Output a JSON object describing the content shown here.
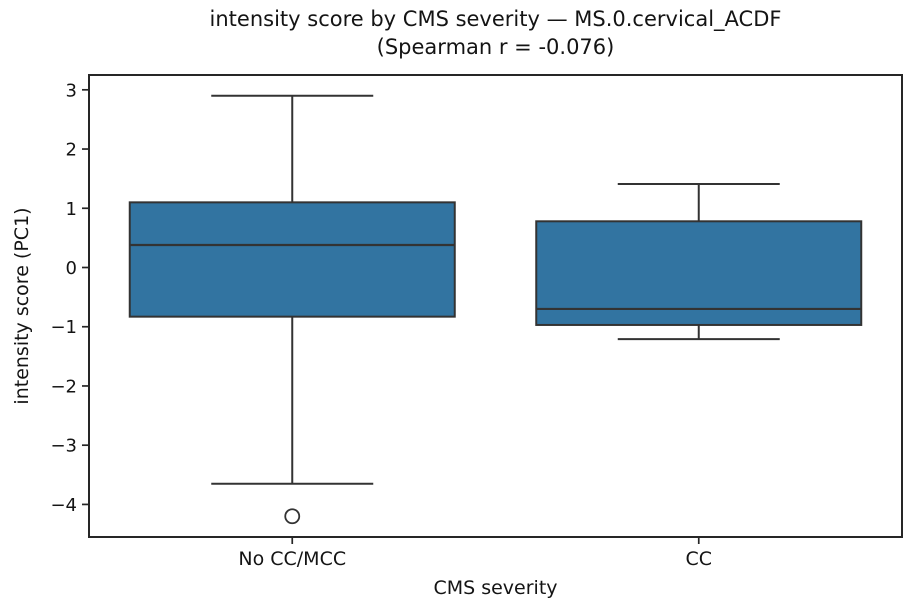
{
  "figure": {
    "background": "#ffffff"
  },
  "chart_data": {
    "type": "box",
    "title": "intensity score by CMS severity — MS.0.cervical_ACDF",
    "subtitle": "(Spearman r = -0.076)",
    "xlabel": "CMS severity",
    "ylabel": "intensity score (PC1)",
    "categories": [
      "No CC/MCC",
      "CC"
    ],
    "series": [
      {
        "category": "No CC/MCC",
        "whisker_low": -3.65,
        "q1": -0.83,
        "median": 0.38,
        "q3": 1.1,
        "whisker_high": 2.9,
        "outliers": [
          -4.2
        ]
      },
      {
        "category": "CC",
        "whisker_low": -1.21,
        "q1": -0.97,
        "median": -0.7,
        "q3": 0.78,
        "whisker_high": 1.41,
        "outliers": []
      }
    ],
    "y_ticks": [
      3,
      2,
      1,
      0,
      -1,
      -2,
      -3,
      -4
    ],
    "y_tick_labels": [
      "3",
      "2",
      "1",
      "0",
      "−1",
      "−2",
      "−3",
      "−4"
    ],
    "ylim": [
      -4.55,
      3.25
    ],
    "grid": false,
    "legend_position": "none",
    "box_fill_color": "#3274a1",
    "box_line_color": "#333333",
    "axis_color": "#262626",
    "text_color": "#141414"
  }
}
